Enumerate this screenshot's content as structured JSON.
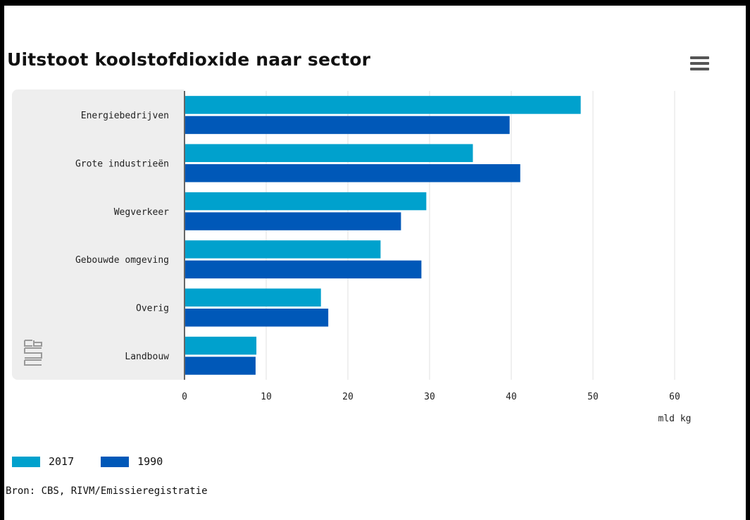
{
  "chart_data": {
    "type": "bar",
    "orientation": "horizontal",
    "title": "Uitstoot koolstofdioxide naar sector",
    "categories": [
      "Energiebedrijven",
      "Grote industrieën",
      "Wegverkeer",
      "Gebouwde omgeving",
      "Overig",
      "Landbouw"
    ],
    "series": [
      {
        "name": "2017",
        "values": [
          48.5,
          35.3,
          29.6,
          24.0,
          16.7,
          8.8
        ],
        "color": "#00a1cd"
      },
      {
        "name": "1990",
        "values": [
          39.8,
          41.1,
          26.5,
          29.0,
          17.6,
          8.7
        ],
        "color": "#0058b8"
      }
    ],
    "x_ticks": [
      0,
      10,
      20,
      30,
      40,
      50,
      60
    ],
    "xlim": [
      0,
      60
    ],
    "xunit": "mld kg",
    "grid": true,
    "legend_position": "bottom-left"
  },
  "source": "Bron: CBS, RIVM/Emissieregistratie",
  "icons": {
    "menu": "hamburger-menu-icon",
    "logo": "cbs-logo-icon"
  },
  "colors": {
    "panel": "#eeeeee",
    "grid": "#e2e2e2",
    "axis": "#666666"
  }
}
